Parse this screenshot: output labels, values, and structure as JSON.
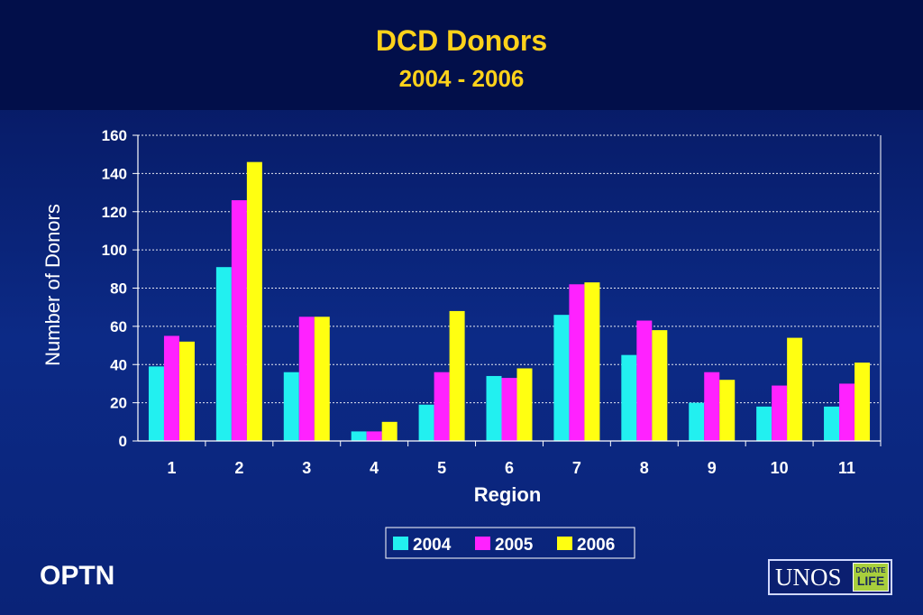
{
  "slide": {
    "title": "DCD Donors",
    "subtitle": "2004 - 2006",
    "footer_left": "OPTN",
    "logo_main": "UNOS",
    "logo_badge_top": "DONATE",
    "logo_badge_bottom": "LIFE"
  },
  "colors": {
    "background": "#0a2378",
    "title": "#ffd21a",
    "s2004": "#22f0f0",
    "s2005": "#ff22ff",
    "s2006": "#ffff11"
  },
  "chart_data": {
    "type": "bar",
    "title": "",
    "xlabel": "Region",
    "ylabel": "Number of Donors",
    "categories": [
      "1",
      "2",
      "3",
      "4",
      "5",
      "6",
      "7",
      "8",
      "9",
      "10",
      "11"
    ],
    "ylim": [
      0,
      160
    ],
    "yticks": [
      0,
      20,
      40,
      60,
      80,
      100,
      120,
      140,
      160
    ],
    "grid": true,
    "legend_position": "bottom",
    "series": [
      {
        "name": "2004",
        "color": "#22f0f0",
        "values": [
          39,
          91,
          36,
          5,
          19,
          34,
          66,
          45,
          20,
          18,
          18
        ]
      },
      {
        "name": "2005",
        "color": "#ff22ff",
        "values": [
          55,
          126,
          65,
          5,
          36,
          33,
          82,
          63,
          36,
          29,
          30
        ]
      },
      {
        "name": "2006",
        "color": "#ffff11",
        "values": [
          52,
          146,
          65,
          10,
          68,
          38,
          83,
          58,
          32,
          54,
          41
        ]
      }
    ]
  }
}
